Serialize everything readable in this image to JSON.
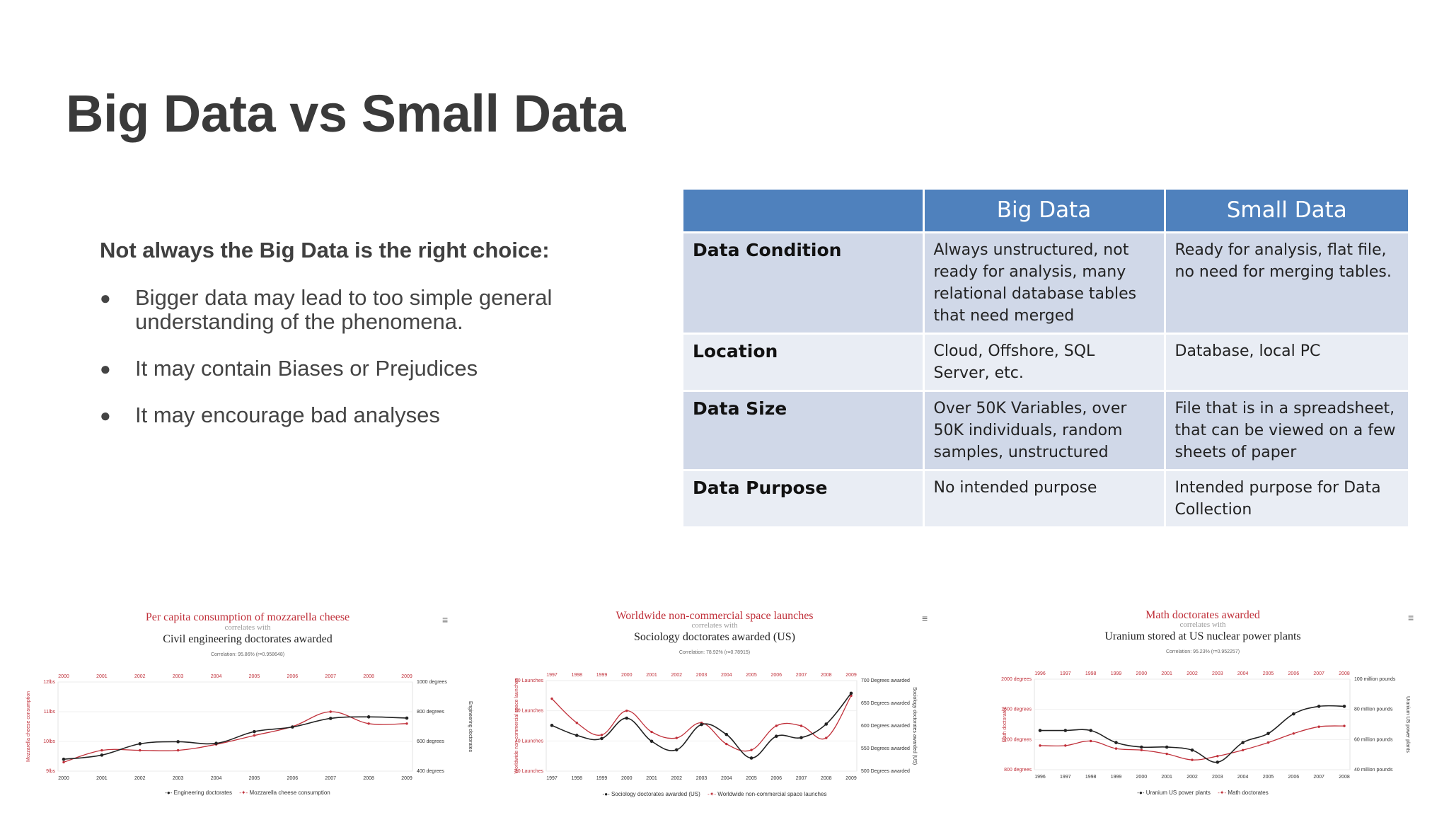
{
  "slide": {
    "title": "Big Data vs Small Data",
    "intro": "Not always the Big Data is the right choice:",
    "bullets": [
      "Bigger data  may lead to too simple general understanding of the phenomena.",
      "It may contain Biases or Prejudices",
      "It may encourage bad analyses"
    ],
    "bullet_symbol": "●"
  },
  "comparison_table": {
    "header": [
      "",
      "Big Data",
      "Small Data"
    ],
    "rows": [
      {
        "label": "Data Condition",
        "big": "Always unstructured, not ready for analysis, many relational database tables that need merged",
        "small": "Ready for analysis, flat file, no need for merging tables."
      },
      {
        "label": "Location",
        "big": "Cloud, Offshore, SQL Server, etc.",
        "small": "Database, local PC"
      },
      {
        "label": "Data Size",
        "big": "Over 50K Variables, over 50K individuals, random samples, unstructured",
        "small": "File that is in a spreadsheet, that can be viewed on a few sheets of paper"
      },
      {
        "label": "Data Purpose",
        "big": "No intended purpose",
        "small": "Intended purpose for Data Collection"
      }
    ],
    "colors": {
      "header_bg": "#4f81bd",
      "row_odd": "#d0d8e8",
      "row_even": "#e9edf4"
    }
  },
  "menu_icon": "hamburger-menu-icon",
  "chart_data": [
    {
      "type": "line",
      "title": "Per capita consumption of mozzarella cheese",
      "subtitle": "correlates with",
      "title2": "Civil engineering doctorates awarded",
      "correlation": "Correlation: 95.86% (r=0.958648)",
      "x": [
        "2000",
        "2001",
        "2002",
        "2003",
        "2004",
        "2005",
        "2006",
        "2007",
        "2008",
        "2009"
      ],
      "ylabel": "Mozzarella cheese consumption",
      "ylabel_right": "Engineering doctorates",
      "left_ticks": [
        "12lbs",
        "11lbs",
        "10lbs",
        "9lbs"
      ],
      "left_range": [
        9,
        12
      ],
      "right_ticks": [
        "1000 degrees",
        "800 degrees",
        "600 degrees",
        "400 degrees"
      ],
      "right_range": [
        400,
        1000
      ],
      "series": [
        {
          "name": "Engineering doctorates",
          "axis": "right",
          "color": "#222222",
          "values": [
            480,
            508,
            584,
            598,
            587,
            666,
            697,
            755,
            765,
            757
          ]
        },
        {
          "name": "Mozzarella cheese consumption",
          "axis": "left",
          "color": "#c0303a",
          "values": [
            9.3,
            9.7,
            9.7,
            9.7,
            9.9,
            10.2,
            10.5,
            11.0,
            10.6,
            10.6
          ]
        }
      ]
    },
    {
      "type": "line",
      "title": "Worldwide non-commercial space launches",
      "subtitle": "correlates with",
      "title2": "Sociology doctorates awarded (US)",
      "correlation": "Correlation: 78.92% (r=0.78915)",
      "x": [
        "1997",
        "1998",
        "1999",
        "2000",
        "2001",
        "2002",
        "2003",
        "2004",
        "2005",
        "2006",
        "2007",
        "2008",
        "2009"
      ],
      "ylabel": "Worldwide non-commercial space launches",
      "ylabel_right": "Sociology doctorates awarded (US)",
      "left_ticks": [
        "60 Launches",
        "50 Launches",
        "40 Launches",
        "30 Launches"
      ],
      "left_range": [
        30,
        60
      ],
      "right_ticks": [
        "700 Degrees awarded",
        "650 Degrees awarded",
        "600 Degrees awarded",
        "550 Degrees awarded",
        "500 Degrees awarded"
      ],
      "right_range": [
        500,
        700
      ],
      "series": [
        {
          "name": "Sociology doctorates awarded (US)",
          "axis": "right",
          "color": "#222222",
          "values": [
            601,
            579,
            572,
            617,
            566,
            547,
            603,
            581,
            529,
            577,
            574,
            604,
            672
          ]
        },
        {
          "name": "Worldwide non-commercial space launches",
          "axis": "left",
          "color": "#c0303a",
          "values": [
            54,
            46,
            42,
            50,
            43,
            41,
            46,
            39,
            37,
            45,
            45,
            41,
            55
          ]
        }
      ]
    },
    {
      "type": "line",
      "title": "Math doctorates awarded",
      "subtitle": "correlates with",
      "title2": "Uranium stored at US nuclear power plants",
      "correlation": "Correlation: 95.23% (r=0.952257)",
      "x": [
        "1996",
        "1997",
        "1998",
        "1999",
        "2000",
        "2001",
        "2002",
        "2003",
        "2004",
        "2005",
        "2006",
        "2007",
        "2008"
      ],
      "ylabel": "Math doctorates",
      "ylabel_right": "Uranium US power plants",
      "left_ticks": [
        "2000 degrees",
        "1600 degrees",
        "1200 degrees",
        "800 degrees"
      ],
      "left_range": [
        800,
        2000
      ],
      "right_ticks": [
        "100 million pounds",
        "80 million pounds",
        "60 million pounds",
        "40 million pounds"
      ],
      "right_range": [
        40,
        100
      ],
      "series": [
        {
          "name": "Uranium US power plants",
          "axis": "right",
          "color": "#222222",
          "values": [
            66,
            66,
            66,
            58,
            55,
            55,
            53,
            45,
            58,
            64,
            77,
            82,
            82
          ]
        },
        {
          "name": "Math doctorates",
          "axis": "left",
          "color": "#c0303a",
          "values": [
            1120,
            1120,
            1180,
            1080,
            1060,
            1010,
            930,
            980,
            1060,
            1160,
            1280,
            1370,
            1380
          ]
        }
      ]
    }
  ]
}
